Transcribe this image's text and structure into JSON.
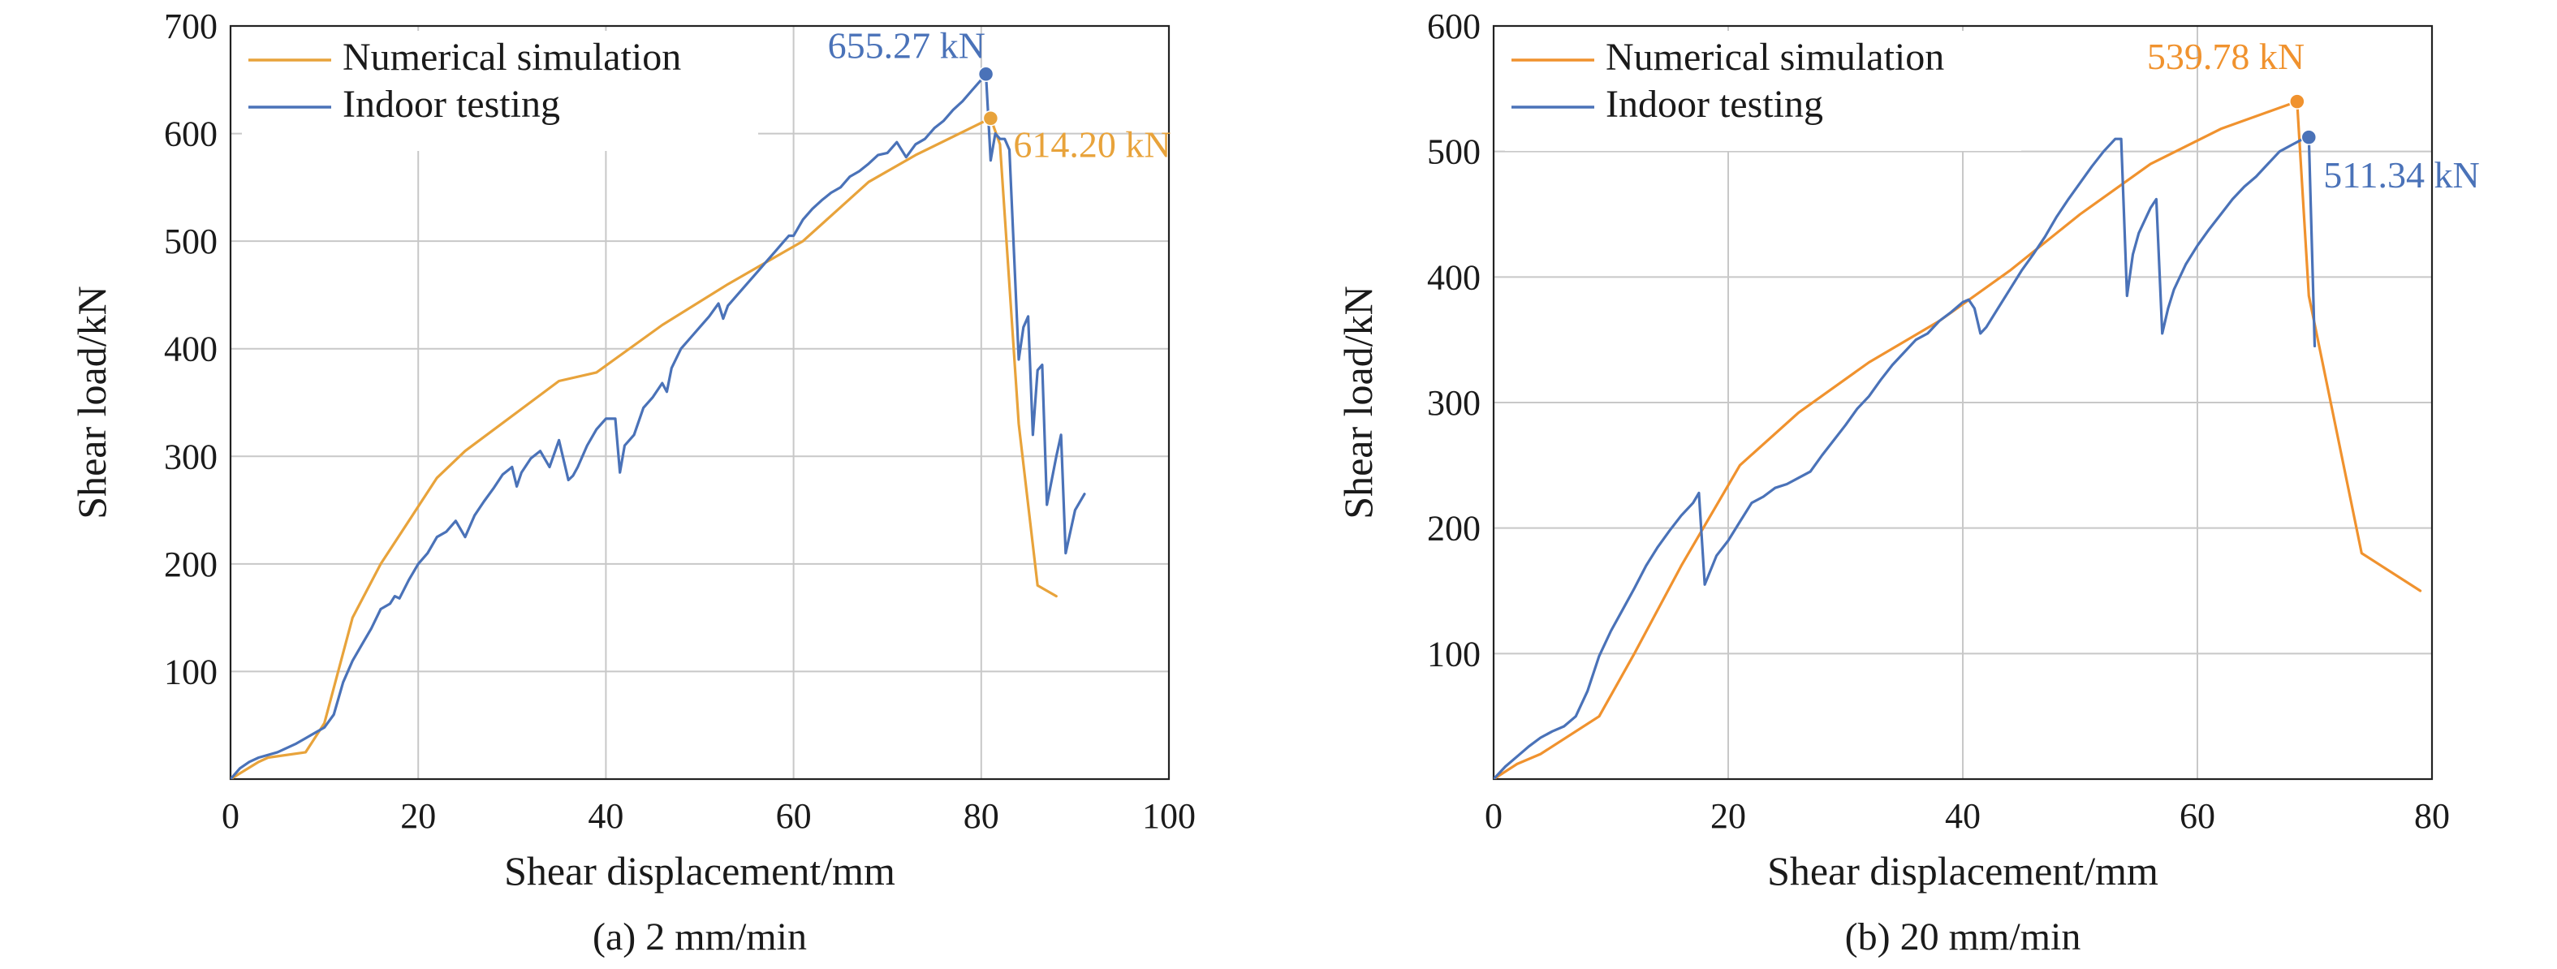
{
  "chart_data": [
    {
      "type": "line",
      "caption": "(a) 2 mm/min",
      "xlabel": "Shear displacement/mm",
      "ylabel": "Shear load/kN",
      "xlim": [
        0,
        100
      ],
      "ylim": [
        0,
        700
      ],
      "x_ticks": [
        "0",
        "20",
        "40",
        "60",
        "80",
        "100"
      ],
      "y_ticks": [
        "100",
        "200",
        "300",
        "400",
        "500",
        "600",
        "700"
      ],
      "grid": true,
      "legend_position": "top-left",
      "colors": {
        "Numerical simulation": "#E8A33B",
        "Indoor testing": "#4A72B8"
      },
      "series": [
        {
          "name": "Numerical simulation",
          "color": "#E8A33B",
          "points": [
            [
              0,
              0
            ],
            [
              3,
              16
            ],
            [
              4,
              20
            ],
            [
              8,
              25
            ],
            [
              10,
              52
            ],
            [
              13,
              150
            ],
            [
              16,
              200
            ],
            [
              22,
              280
            ],
            [
              25,
              305
            ],
            [
              35,
              370
            ],
            [
              39,
              378
            ],
            [
              46,
              422
            ],
            [
              53,
              460
            ],
            [
              59,
              490
            ],
            [
              61,
              500
            ],
            [
              68,
              555
            ],
            [
              73,
              580
            ],
            [
              81,
              614.2
            ],
            [
              82,
              590
            ],
            [
              84,
              330
            ],
            [
              86,
              180
            ],
            [
              88,
              170
            ]
          ]
        },
        {
          "name": "Indoor testing",
          "color": "#4A72B8",
          "points": [
            [
              0,
              0
            ],
            [
              1,
              10
            ],
            [
              2,
              16
            ],
            [
              3,
              20
            ],
            [
              5,
              25
            ],
            [
              7,
              33
            ],
            [
              8,
              38
            ],
            [
              10,
              48
            ],
            [
              11,
              60
            ],
            [
              12,
              90
            ],
            [
              13,
              110
            ],
            [
              14,
              125
            ],
            [
              15,
              140
            ],
            [
              16,
              158
            ],
            [
              17,
              163
            ],
            [
              17.5,
              170
            ],
            [
              18,
              168
            ],
            [
              19,
              185
            ],
            [
              20,
              200
            ],
            [
              21,
              210
            ],
            [
              22,
              225
            ],
            [
              23,
              230
            ],
            [
              24,
              240
            ],
            [
              25,
              225
            ],
            [
              26,
              245
            ],
            [
              27,
              258
            ],
            [
              28,
              270
            ],
            [
              29,
              283
            ],
            [
              30,
              290
            ],
            [
              30.5,
              272
            ],
            [
              31,
              285
            ],
            [
              32,
              298
            ],
            [
              33,
              305
            ],
            [
              34,
              290
            ],
            [
              35,
              315
            ],
            [
              36,
              278
            ],
            [
              36.5,
              282
            ],
            [
              37,
              290
            ],
            [
              38,
              310
            ],
            [
              39,
              325
            ],
            [
              40,
              335
            ],
            [
              41,
              335
            ],
            [
              41.5,
              285
            ],
            [
              42,
              310
            ],
            [
              43,
              320
            ],
            [
              44,
              345
            ],
            [
              45,
              355
            ],
            [
              46,
              368
            ],
            [
              46.5,
              360
            ],
            [
              47,
              382
            ],
            [
              48,
              400
            ],
            [
              49,
              410
            ],
            [
              50,
              420
            ],
            [
              51,
              430
            ],
            [
              52,
              442
            ],
            [
              52.5,
              428
            ],
            [
              53,
              440
            ],
            [
              54,
              450
            ],
            [
              55,
              460
            ],
            [
              56,
              470
            ],
            [
              57,
              480
            ],
            [
              58,
              490
            ],
            [
              59,
              500
            ],
            [
              59.5,
              505
            ],
            [
              60,
              505
            ],
            [
              61,
              520
            ],
            [
              62,
              530
            ],
            [
              63,
              538
            ],
            [
              64,
              545
            ],
            [
              65,
              550
            ],
            [
              66,
              560
            ],
            [
              67,
              565
            ],
            [
              68,
              572
            ],
            [
              69,
              580
            ],
            [
              70,
              582
            ],
            [
              71,
              592
            ],
            [
              72,
              578
            ],
            [
              73,
              590
            ],
            [
              74,
              595
            ],
            [
              75,
              605
            ],
            [
              76,
              612
            ],
            [
              77,
              622
            ],
            [
              78,
              630
            ],
            [
              79,
              640
            ],
            [
              80,
              650
            ],
            [
              80.5,
              655.27
            ],
            [
              81,
              575
            ],
            [
              81.5,
              600
            ],
            [
              82,
              595
            ],
            [
              82.5,
              595
            ],
            [
              83,
              585
            ],
            [
              84,
              390
            ],
            [
              84.5,
              420
            ],
            [
              85,
              430
            ],
            [
              85.5,
              320
            ],
            [
              86,
              380
            ],
            [
              86.5,
              385
            ],
            [
              87,
              255
            ],
            [
              88,
              300
            ],
            [
              88.5,
              320
            ],
            [
              89,
              210
            ],
            [
              90,
              250
            ],
            [
              91,
              265
            ]
          ]
        }
      ],
      "annotations": [
        {
          "series": "Indoor testing",
          "x": 80.5,
          "y": 655.27,
          "label": "655.27 kN",
          "color": "#4A72B8"
        },
        {
          "series": "Numerical simulation",
          "x": 81,
          "y": 614.2,
          "label": "614.20 kN",
          "color": "#E8A33B"
        }
      ]
    },
    {
      "type": "line",
      "caption": "(b) 20 mm/min",
      "xlabel": "Shear displacement/mm",
      "ylabel": "Shear load/kN",
      "xlim": [
        0,
        80
      ],
      "ylim": [
        0,
        600
      ],
      "x_ticks": [
        "0",
        "20",
        "40",
        "60",
        "80"
      ],
      "y_ticks": [
        "100",
        "200",
        "300",
        "400",
        "500",
        "600"
      ],
      "grid": true,
      "legend_position": "top-left",
      "colors": {
        "Numerical simulation": "#F0922E",
        "Indoor testing": "#4A72B8"
      },
      "series": [
        {
          "name": "Numerical simulation",
          "color": "#F0922E",
          "points": [
            [
              0,
              0
            ],
            [
              2,
              12
            ],
            [
              4,
              20
            ],
            [
              9,
              50
            ],
            [
              12,
              100
            ],
            [
              16,
              170
            ],
            [
              21,
              250
            ],
            [
              26,
              292
            ],
            [
              32,
              332
            ],
            [
              38,
              365
            ],
            [
              44,
              405
            ],
            [
              50,
              450
            ],
            [
              56,
              490
            ],
            [
              62,
              518
            ],
            [
              68.5,
              539.78
            ],
            [
              69.5,
              385
            ],
            [
              74,
              180
            ],
            [
              79,
              150
            ]
          ]
        },
        {
          "name": "Indoor testing",
          "color": "#4A72B8",
          "points": [
            [
              0,
              0
            ],
            [
              1,
              10
            ],
            [
              2,
              18
            ],
            [
              3,
              26
            ],
            [
              4,
              33
            ],
            [
              5,
              38
            ],
            [
              6,
              42
            ],
            [
              7,
              50
            ],
            [
              8,
              70
            ],
            [
              9,
              98
            ],
            [
              10,
              118
            ],
            [
              11,
              135
            ],
            [
              12,
              152
            ],
            [
              13,
              170
            ],
            [
              14,
              185
            ],
            [
              15,
              198
            ],
            [
              16,
              210
            ],
            [
              17,
              220
            ],
            [
              17.5,
              228
            ],
            [
              18,
              155
            ],
            [
              19,
              178
            ],
            [
              20,
              190
            ],
            [
              21,
              205
            ],
            [
              22,
              220
            ],
            [
              23,
              225
            ],
            [
              24,
              232
            ],
            [
              25,
              235
            ],
            [
              26,
              240
            ],
            [
              27,
              245
            ],
            [
              28,
              258
            ],
            [
              29,
              270
            ],
            [
              30,
              282
            ],
            [
              31,
              295
            ],
            [
              32,
              305
            ],
            [
              33,
              318
            ],
            [
              34,
              330
            ],
            [
              35,
              340
            ],
            [
              36,
              350
            ],
            [
              37,
              355
            ],
            [
              38,
              365
            ],
            [
              39,
              372
            ],
            [
              40,
              380
            ],
            [
              40.5,
              382
            ],
            [
              41,
              375
            ],
            [
              41.5,
              355
            ],
            [
              42,
              360
            ],
            [
              43,
              375
            ],
            [
              44,
              390
            ],
            [
              45,
              405
            ],
            [
              46,
              418
            ],
            [
              47,
              432
            ],
            [
              48,
              448
            ],
            [
              49,
              462
            ],
            [
              50,
              475
            ],
            [
              51,
              488
            ],
            [
              52,
              500
            ],
            [
              53,
              510
            ],
            [
              53.5,
              510
            ],
            [
              54,
              385
            ],
            [
              54.5,
              418
            ],
            [
              55,
              435
            ],
            [
              56,
              455
            ],
            [
              56.5,
              462
            ],
            [
              57,
              355
            ],
            [
              57.5,
              375
            ],
            [
              58,
              390
            ],
            [
              59,
              410
            ],
            [
              60,
              425
            ],
            [
              61,
              438
            ],
            [
              62,
              450
            ],
            [
              63,
              462
            ],
            [
              64,
              472
            ],
            [
              65,
              480
            ],
            [
              66,
              490
            ],
            [
              67,
              500
            ],
            [
              68,
              505
            ],
            [
              69,
              510
            ],
            [
              69.5,
              511.34
            ],
            [
              70,
              345
            ]
          ]
        }
      ],
      "annotations": [
        {
          "series": "Numerical simulation",
          "x": 68.5,
          "y": 539.78,
          "label": "539.78 kN",
          "color": "#F0922E"
        },
        {
          "series": "Indoor testing",
          "x": 69.5,
          "y": 511.34,
          "label": "511.34 kN",
          "color": "#4A72B8"
        }
      ]
    }
  ]
}
